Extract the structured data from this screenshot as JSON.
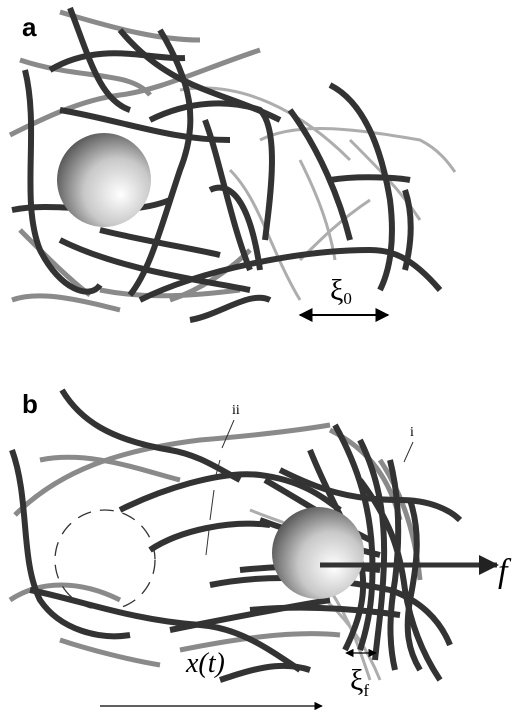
{
  "panels": [
    {
      "label": "a",
      "width_label": {
        "symbol": "ξ",
        "subscript": "0"
      }
    },
    {
      "label": "b",
      "markers": [
        "ii",
        "i"
      ],
      "force_label": "f",
      "displacement_label": "x(t)",
      "width_label": {
        "symbol": "ξ",
        "subscript": "f"
      }
    }
  ]
}
